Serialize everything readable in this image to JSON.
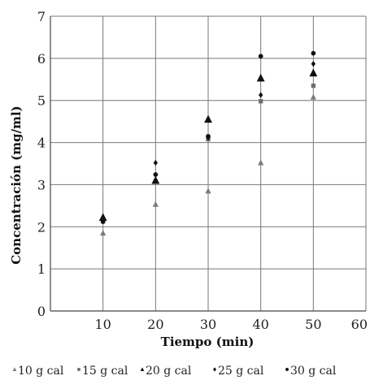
{
  "chart_data": {
    "type": "scatter",
    "title": "",
    "xlabel": "Tiempo (min)",
    "ylabel": "Concentración (mg/ml)",
    "xlim": [
      0,
      60
    ],
    "ylim": [
      0,
      7
    ],
    "xticks": [
      10,
      20,
      30,
      40,
      50,
      60
    ],
    "yticks": [
      0,
      1,
      2,
      3,
      4,
      5,
      6,
      7
    ],
    "grid": true,
    "legend_position": "bottom",
    "series": [
      {
        "name": "10 g cal",
        "marker": "triangle",
        "color": "#7a7a7a",
        "x": [
          10,
          20,
          30,
          40,
          50
        ],
        "y": [
          1.85,
          2.53,
          2.85,
          3.52,
          5.08
        ]
      },
      {
        "name": "15 g cal",
        "marker": "square",
        "color": "#6e6e6e",
        "x": [
          10,
          20,
          30,
          40,
          50
        ],
        "y": [
          2.15,
          3.07,
          4.08,
          4.98,
          5.35
        ]
      },
      {
        "name": "20 g cal",
        "marker": "triangle",
        "color": "#111111",
        "x": [
          10,
          20,
          30,
          40,
          50
        ],
        "y": [
          2.22,
          3.1,
          4.55,
          5.53,
          5.65
        ]
      },
      {
        "name": "25 g cal",
        "marker": "diamond",
        "color": "#111111",
        "x": [
          10,
          20,
          30,
          40,
          50
        ],
        "y": [
          2.16,
          3.52,
          4.12,
          5.13,
          5.87
        ]
      },
      {
        "name": "30 g cal",
        "marker": "circle",
        "color": "#111111",
        "x": [
          10,
          20,
          30,
          40,
          50
        ],
        "y": [
          2.12,
          3.24,
          4.15,
          6.05,
          6.12
        ]
      }
    ]
  }
}
